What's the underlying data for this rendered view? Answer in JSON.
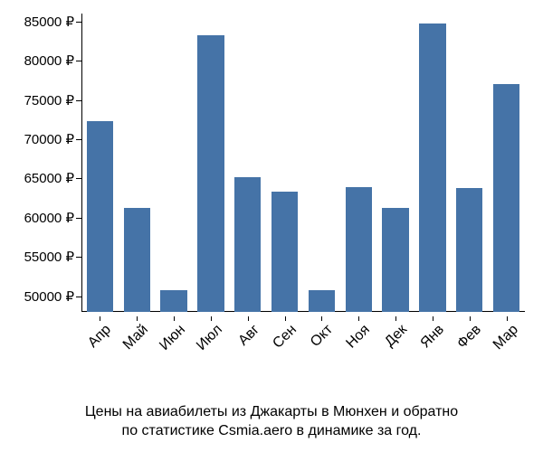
{
  "chart": {
    "type": "bar",
    "background_color": "#ffffff",
    "bar_color": "#4573a7",
    "axis_color": "#000000",
    "text_color": "#000000",
    "font_family": "Arial, Helvetica, sans-serif",
    "label_fontsize": 15,
    "caption_fontsize": 16,
    "y": {
      "min": 48000,
      "max": 86000,
      "ticks": [
        50000,
        55000,
        60000,
        65000,
        70000,
        75000,
        80000,
        85000
      ],
      "tick_labels": [
        "50000 ₽",
        "55000 ₽",
        "60000 ₽",
        "65000 ₽",
        "70000 ₽",
        "75000 ₽",
        "80000 ₽",
        "85000 ₽"
      ]
    },
    "categories": [
      "Апр",
      "Май",
      "Июн",
      "Июл",
      "Авг",
      "Сен",
      "Окт",
      "Ноя",
      "Дек",
      "Янв",
      "Фев",
      "Мар"
    ],
    "values": [
      72300,
      61200,
      50800,
      83200,
      65200,
      63300,
      50800,
      63900,
      61200,
      84700,
      63800,
      77000
    ],
    "bar_width_ratio": 0.72
  },
  "caption": {
    "line1": "Цены на авиабилеты из Джакарты в Мюнхен и обратно",
    "line2": "по статистике Csmia.aero в динамике за год."
  }
}
